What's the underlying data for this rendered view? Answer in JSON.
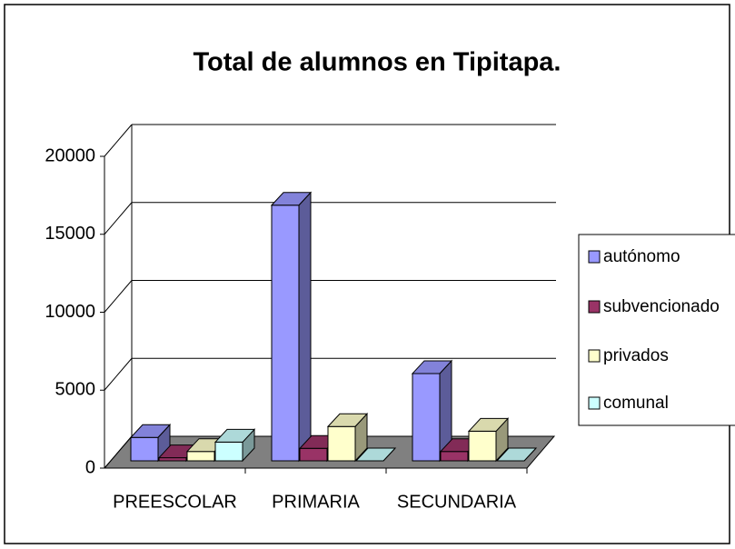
{
  "chart_data": {
    "type": "bar3d",
    "title": "Total de alumnos en Tipitapa.",
    "categories": [
      "PREESCOLAR",
      "PRIMARIA",
      "SECUNDARIA"
    ],
    "series": [
      {
        "name": "autónomo",
        "color": "#9999ff",
        "values": [
          1500,
          16400,
          5600
        ]
      },
      {
        "name": "subvencionado",
        "color": "#993366",
        "values": [
          200,
          800,
          600
        ]
      },
      {
        "name": "privados",
        "color": "#ffffcc",
        "values": [
          600,
          2200,
          1900
        ]
      },
      {
        "name": "comunal",
        "color": "#ccffff",
        "values": [
          1200,
          0,
          0
        ]
      }
    ],
    "ylim": [
      0,
      20000
    ],
    "yticks": [
      0,
      5000,
      10000,
      15000,
      20000
    ],
    "grid": true,
    "legend": "right"
  }
}
